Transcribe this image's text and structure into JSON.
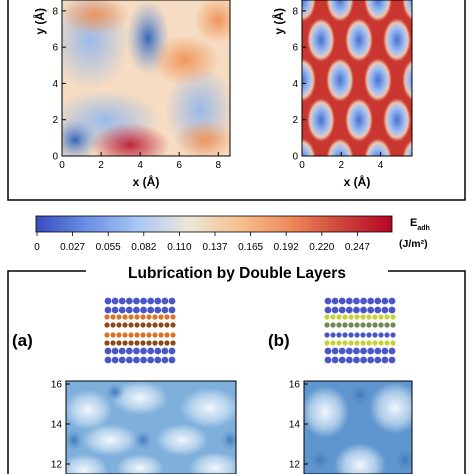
{
  "chart_data": [
    {
      "type": "heatmap",
      "panel": "top-left",
      "xlabel": "x (Å)",
      "ylabel": "y (Å)",
      "xticks": [
        0,
        2,
        4,
        6,
        8
      ],
      "yticks": [
        0,
        2,
        4,
        6,
        8
      ],
      "xlim": [
        0,
        8.6
      ],
      "ylim": [
        0,
        8.6
      ],
      "colormap": "coolwarm",
      "value_range": [
        0,
        0.275
      ]
    },
    {
      "type": "heatmap",
      "panel": "top-right",
      "xlabel": "x (Å)",
      "ylabel": "y (Å)",
      "xticks": [
        0,
        2,
        4
      ],
      "yticks": [
        0,
        2,
        4,
        6,
        8
      ],
      "xlim": [
        0,
        5.6
      ],
      "ylim": [
        0,
        8.6
      ],
      "colormap": "coolwarm",
      "value_range": [
        0,
        0.275
      ]
    },
    {
      "type": "heatmap",
      "panel": "bottom-left",
      "label": "(a)",
      "yticks": [
        12,
        14,
        16
      ],
      "colormap": "blues"
    },
    {
      "type": "heatmap",
      "panel": "bottom-right",
      "label": "(b)",
      "yticks": [
        12,
        14,
        16
      ],
      "colormap": "blues"
    }
  ],
  "colorbar": {
    "ticks": [
      "0",
      "0.027",
      "0.055",
      "0.082",
      "0.110",
      "0.137",
      "0.165",
      "0.192",
      "0.220",
      "0.247"
    ],
    "label_main": "E",
    "label_sub": "adh",
    "units": "(J/m²)",
    "stops": [
      "#3b4cc0",
      "#6b8fe6",
      "#a9c6f5",
      "#ebe8d6",
      "#f6c08f",
      "#ee8a5c",
      "#cf453a",
      "#b40426"
    ]
  },
  "section_title": "Lubrication by Double Layers"
}
